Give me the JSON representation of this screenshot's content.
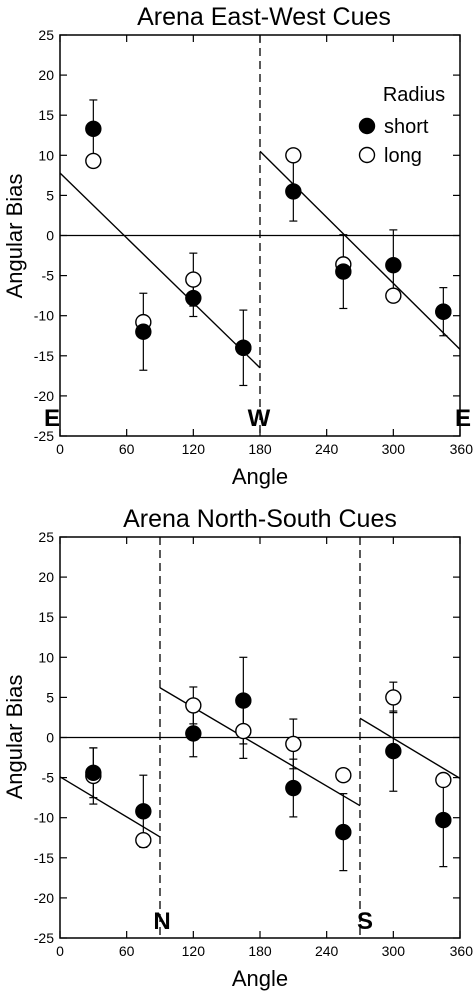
{
  "chart_data": [
    {
      "type": "scatter",
      "title": "Arena East-West Cues",
      "xlabel": "Angle",
      "ylabel": "Angular Bias",
      "xlim": [
        0,
        360
      ],
      "ylim": [
        -25,
        25
      ],
      "xticks": [
        "0",
        "60",
        "120",
        "180",
        "240",
        "300",
        "360"
      ],
      "yticks": [
        "25",
        "20",
        "15",
        "10",
        "5",
        "0",
        "-5",
        "-10",
        "-15",
        "-20",
        "-25"
      ],
      "legend": {
        "title": "Radius",
        "position": "top-right",
        "entries": [
          "short",
          "long"
        ]
      },
      "direction_labels": [
        {
          "x": 0,
          "text": "E"
        },
        {
          "x": 180,
          "text": "W"
        },
        {
          "x": 360,
          "text": "E"
        }
      ],
      "dividers": [
        180
      ],
      "zero_line": true,
      "series": [
        {
          "name": "short",
          "filled": true,
          "points": [
            {
              "x": 30,
              "y": 13.3,
              "err": 3.6
            },
            {
              "x": 75,
              "y": -12.0,
              "err": 4.8
            },
            {
              "x": 120,
              "y": -7.8,
              "err": 2.3
            },
            {
              "x": 165,
              "y": -14.0,
              "err": 4.7
            },
            {
              "x": 210,
              "y": 5.5,
              "err": 3.7
            },
            {
              "x": 255,
              "y": -4.5,
              "err": 4.6
            },
            {
              "x": 300,
              "y": -3.7,
              "err": 4.4
            },
            {
              "x": 345,
              "y": -9.5,
              "err": 3.0
            }
          ]
        },
        {
          "name": "long",
          "filled": false,
          "points": [
            {
              "x": 30,
              "y": 9.3,
              "err": 0
            },
            {
              "x": 75,
              "y": -10.8,
              "err": 0
            },
            {
              "x": 120,
              "y": -5.5,
              "err": 3.3
            },
            {
              "x": 165,
              "y": -14.0,
              "err": 0
            },
            {
              "x": 210,
              "y": 10.0,
              "err": 0
            },
            {
              "x": 255,
              "y": -3.6,
              "err": 0
            },
            {
              "x": 300,
              "y": -7.5,
              "err": 0
            },
            {
              "x": 345,
              "y": -9.5,
              "err": 0
            }
          ]
        }
      ],
      "fit_lines": [
        {
          "x": [
            0,
            180
          ],
          "y": [
            7.8,
            -16.5
          ]
        },
        {
          "x": [
            180,
            360
          ],
          "y": [
            10.5,
            -14.2
          ]
        }
      ]
    },
    {
      "type": "scatter",
      "title": "Arena North-South Cues",
      "xlabel": "Angle",
      "ylabel": "Angular Bias",
      "xlim": [
        0,
        360
      ],
      "ylim": [
        -25,
        25
      ],
      "xticks": [
        "0",
        "60",
        "120",
        "180",
        "240",
        "300",
        "360"
      ],
      "yticks": [
        "25",
        "20",
        "15",
        "10",
        "5",
        "0",
        "-5",
        "-10",
        "-15",
        "-20",
        "-25"
      ],
      "direction_labels": [
        {
          "x": 90,
          "text": "N"
        },
        {
          "x": 270,
          "text": "S"
        }
      ],
      "dividers": [
        90,
        270
      ],
      "zero_line": true,
      "series": [
        {
          "name": "short",
          "filled": true,
          "points": [
            {
              "x": 30,
              "y": -4.4,
              "err": 3.1
            },
            {
              "x": 75,
              "y": -9.2,
              "err": 4.5
            },
            {
              "x": 120,
              "y": 0.5,
              "err": 2.9
            },
            {
              "x": 165,
              "y": 4.6,
              "err": 5.4
            },
            {
              "x": 210,
              "y": -6.3,
              "err": 3.6
            },
            {
              "x": 255,
              "y": -11.8,
              "err": 4.8
            },
            {
              "x": 300,
              "y": -1.7,
              "err": 5.0
            },
            {
              "x": 345,
              "y": -10.3,
              "err": 5.8
            }
          ]
        },
        {
          "name": "long",
          "filled": false,
          "points": [
            {
              "x": 30,
              "y": -4.8,
              "err": 3.5
            },
            {
              "x": 75,
              "y": -12.8,
              "err": 0
            },
            {
              "x": 120,
              "y": 4.0,
              "err": 2.3
            },
            {
              "x": 165,
              "y": 0.8,
              "err": 3.4
            },
            {
              "x": 210,
              "y": -0.8,
              "err": 3.1
            },
            {
              "x": 255,
              "y": -4.7,
              "err": 0
            },
            {
              "x": 300,
              "y": 5.0,
              "err": 1.9
            },
            {
              "x": 345,
              "y": -5.3,
              "err": 0
            }
          ]
        }
      ],
      "fit_lines": [
        {
          "x": [
            0,
            90
          ],
          "y": [
            -4.9,
            -12.4
          ]
        },
        {
          "x": [
            90,
            270
          ],
          "y": [
            6.2,
            -8.5
          ]
        },
        {
          "x": [
            270,
            360
          ],
          "y": [
            2.4,
            -5.1
          ]
        }
      ]
    }
  ]
}
